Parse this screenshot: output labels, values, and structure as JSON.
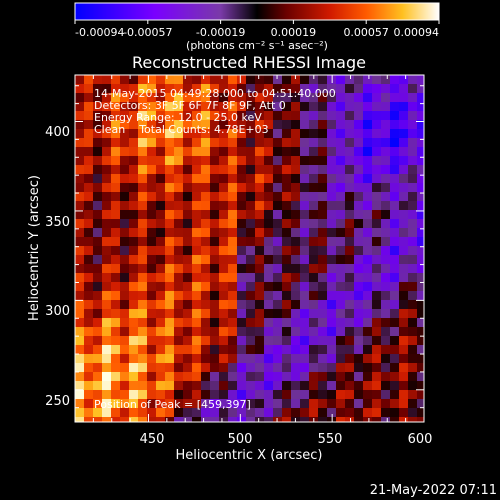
{
  "colorbar": {
    "ticks": [
      "-0.00094",
      "-0.00057",
      "-0.00019",
      "0.00019",
      "0.00057",
      "0.00094"
    ],
    "unit_label": "(photons cm⁻² s⁻¹ asec⁻²)",
    "colors": [
      "#0000ff",
      "#7a00ff",
      "#8040a0",
      "#000000",
      "#5a0000",
      "#c01000",
      "#ff4000",
      "#ffa000",
      "#ffff80",
      "#ffffff"
    ]
  },
  "plot": {
    "title": "Reconstructed RHESSI Image",
    "xlabel": "Heliocentric X (arcsec)",
    "ylabel": "Heliocentric Y (arcsec)",
    "xticks": [
      "450",
      "500",
      "550",
      "600"
    ],
    "yticks": [
      "250",
      "300",
      "350",
      "400"
    ],
    "info_lines": [
      "14-May-2015 04:49:28.000 to 04:51:40.000",
      "Detectors: 3F 5F 6F 7F 8F 9F, Att 0",
      "Energy Range: 12.0 - 25.0 keV",
      "Clean    Total Counts: 4.78E+03"
    ],
    "peak_text": "Position of Peak = [459,397]"
  },
  "footer": {
    "timestamp": "21-May-2022 07:11"
  },
  "chart_data": {
    "type": "heatmap",
    "title": "Reconstructed RHESSI Image",
    "xlabel": "Heliocentric X (arcsec)",
    "ylabel": "Heliocentric Y (arcsec)",
    "xlim": [
      410,
      600
    ],
    "ylim": [
      232,
      426
    ],
    "xticks": [
      450,
      500,
      550,
      600
    ],
    "yticks": [
      250,
      300,
      350,
      400
    ],
    "colorbar_range": [
      -0.00094,
      0.00094
    ],
    "colorbar_ticks": [
      -0.00094,
      -0.00057,
      -0.00019,
      0.00019,
      0.00057,
      0.00094
    ],
    "peak_position": [
      459,
      397
    ],
    "grid": false
  }
}
